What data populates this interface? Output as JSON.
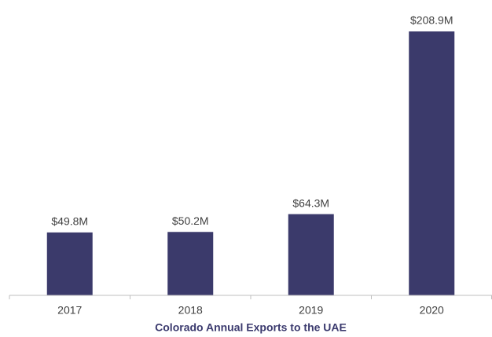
{
  "chart_data": {
    "type": "bar",
    "title": "Colorado Annual Exports to the UAE",
    "categories": [
      "2017",
      "2018",
      "2019",
      "2020"
    ],
    "values": [
      49.8,
      50.2,
      64.3,
      208.9
    ],
    "value_labels": [
      "$49.8M",
      "$50.2M",
      "$64.3M",
      "$208.9M"
    ],
    "color": "#3b3a6b"
  }
}
